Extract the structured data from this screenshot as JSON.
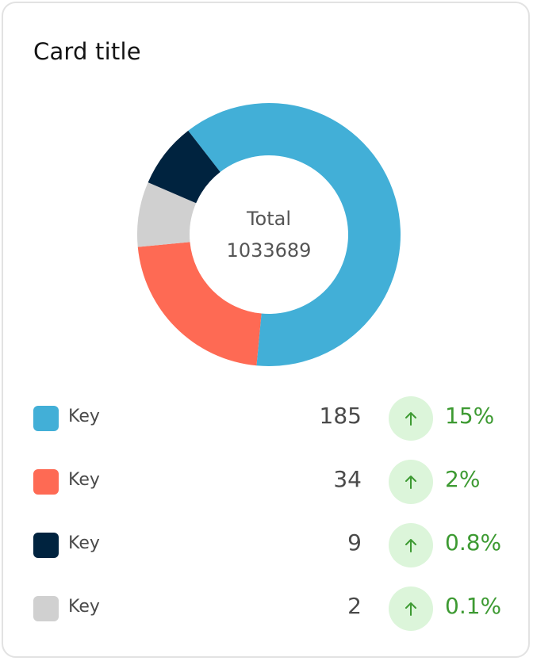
{
  "card": {
    "title": "Card title"
  },
  "colors": {
    "series_0": "#42afd7",
    "series_1": "#fe6a54",
    "series_2": "#00233f",
    "series_3": "#d0d0d0",
    "trend_bg": "#dcf5da",
    "trend_fg": "#3d9a32"
  },
  "chart_data": {
    "type": "pie",
    "style": "donut",
    "title": "Card title",
    "center": {
      "label": "Total",
      "value": "1033689"
    },
    "slices": [
      {
        "name": "",
        "fraction": 0.62,
        "color": "#42afd7"
      },
      {
        "name": "",
        "fraction": 0.22,
        "color": "#fe6a54"
      },
      {
        "name": "",
        "fraction": 0.08,
        "color": "#00233f"
      },
      {
        "name": "",
        "fraction": 0.08,
        "color": "#d0d0d0"
      }
    ],
    "draw_order": [
      0,
      1,
      3,
      2
    ]
  },
  "legend": [
    {
      "label": "Key",
      "value": "185",
      "change": "15%",
      "trend_icon": "arrow-up-icon",
      "color": "#42afd7"
    },
    {
      "label": "Key",
      "value": "34",
      "change": "2%",
      "trend_icon": "arrow-up-icon",
      "color": "#fe6a54"
    },
    {
      "label": "Key",
      "value": "9",
      "change": "0.8%",
      "trend_icon": "arrow-up-icon",
      "color": "#00233f"
    },
    {
      "label": "Key",
      "value": "2",
      "change": "0.1%",
      "trend_icon": "arrow-up-icon",
      "color": "#d0d0d0"
    }
  ]
}
